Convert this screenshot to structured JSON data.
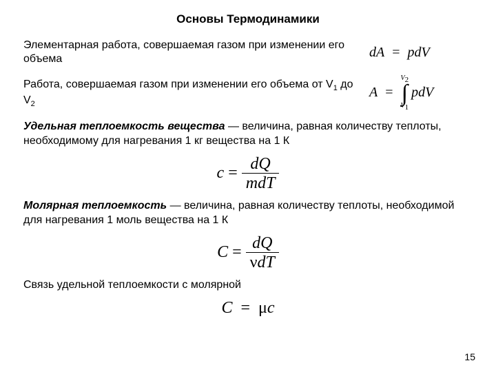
{
  "title": "Основы Термодинамики",
  "row1": {
    "desc": "Элементарная работа, совершаемая газом при изменении его объема"
  },
  "row2": {
    "desc_prefix": "Работа, совершаемая газом при изменении его объема от V",
    "sub1": "1",
    "mid": " до V",
    "sub2": "2"
  },
  "def1": {
    "term": "Удельная теплоемкость вещества",
    "text": " — величина, равная количеству теплоты, необходимому для нагревания 1 кг вещества на 1 К"
  },
  "eq_c": {
    "lhs": "c",
    "num": "dQ",
    "den": "mdT"
  },
  "def2": {
    "term": "Молярная теплоемкость",
    "text": " — величина, равная количеству теплоты, необходимой для нагревания 1 моль вещества на 1 К"
  },
  "eq_C": {
    "lhs": "C",
    "num": "dQ",
    "den_nu": "ν",
    "den_rest": "dT"
  },
  "def3": "Связь удельной теплоемкости с молярной",
  "eq_rel": {
    "lhs": "C",
    "rhs_mu": "μ",
    "rhs_c": "c"
  },
  "eq1": {
    "lhs": "dA",
    "rhs": "pdV"
  },
  "eq2": {
    "lhs": "A",
    "upper": "V",
    "upper_sub": "2",
    "lower": "V",
    "lower_sub": "1",
    "integrand": "pdV"
  },
  "pagenum": "15"
}
